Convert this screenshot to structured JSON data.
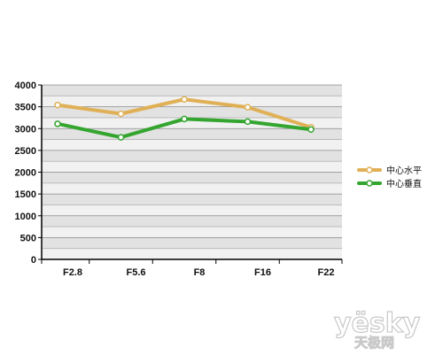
{
  "chart_data": {
    "type": "line",
    "categories": [
      "F2.8",
      "F5.6",
      "F8",
      "F16",
      "F22"
    ],
    "series": [
      {
        "name": "中心水平",
        "color": "#e0b056",
        "values": [
          3540,
          3340,
          3670,
          3490,
          3030
        ]
      },
      {
        "name": "中心垂直",
        "color": "#34a52f",
        "values": [
          3110,
          2800,
          3220,
          3160,
          2980
        ]
      }
    ],
    "ylim": [
      0,
      4000
    ],
    "yticks": [
      0,
      500,
      1000,
      1500,
      2000,
      2500,
      3000,
      3500,
      4000
    ],
    "grid": true,
    "grid_band_colors": [
      "#f1f1f1",
      "#e2e2e2"
    ],
    "legend_position": "right"
  },
  "watermark": {
    "brand": "yesky",
    "brand_display": "yësky",
    "chinese": "天极网"
  }
}
